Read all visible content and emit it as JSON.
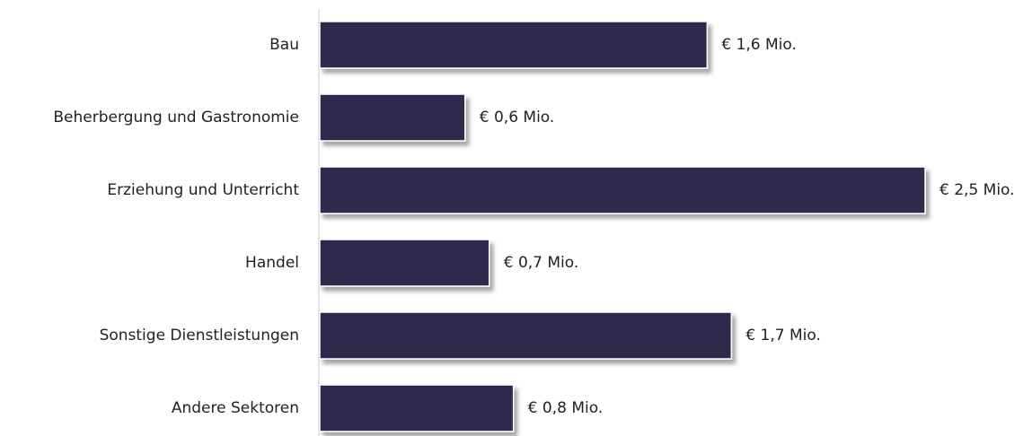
{
  "chart_data": {
    "type": "bar",
    "orientation": "horizontal",
    "categories": [
      "Bau",
      "Beherbergung und Gastronomie",
      "Erziehung und Unterricht",
      "Handel",
      "Sonstige Dienstleistungen",
      "Andere Sektoren"
    ],
    "values": [
      1.6,
      0.6,
      2.5,
      0.7,
      1.7,
      0.8
    ],
    "value_labels": [
      "€ 1,6 Mio.",
      "€ 0,6 Mio.",
      "€ 2,5 Mio.",
      "€ 0,7 Mio.",
      "€ 1,7 Mio.",
      "€ 0,8 Mio."
    ],
    "color": "#2d2b4d"
  }
}
